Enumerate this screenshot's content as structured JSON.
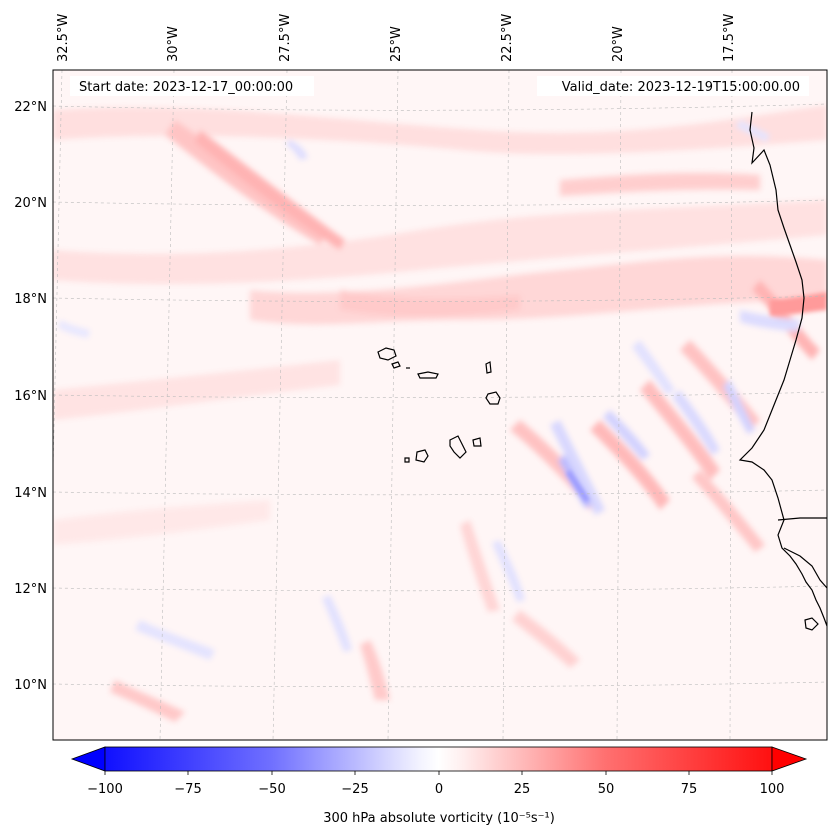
{
  "map": {
    "start_label": "Start date: 2023-12-17_00:00:00",
    "valid_label": "Valid_date: 2023-12-19T15:00:00.00",
    "lon_labels": [
      "32.5°W",
      "30°W",
      "27.5°W",
      "25°W",
      "22.5°W",
      "20°W",
      "17.5°W"
    ],
    "lat_labels": [
      "22°N",
      "20°N",
      "18°N",
      "16°N",
      "14°N",
      "12°N",
      "10°N"
    ],
    "field": "300 hPa absolute vorticity"
  },
  "colorbar": {
    "label": "300 hPa absolute vorticity (10⁻⁵s⁻¹)",
    "min": -100,
    "max": 100,
    "ticks": [
      "−100",
      "−75",
      "−50",
      "−25",
      "0",
      "25",
      "50",
      "75",
      "100"
    ],
    "colormap": "bwr",
    "low_color": "#0000ff",
    "mid_color": "#ffffff",
    "high_color": "#ff0000"
  }
}
